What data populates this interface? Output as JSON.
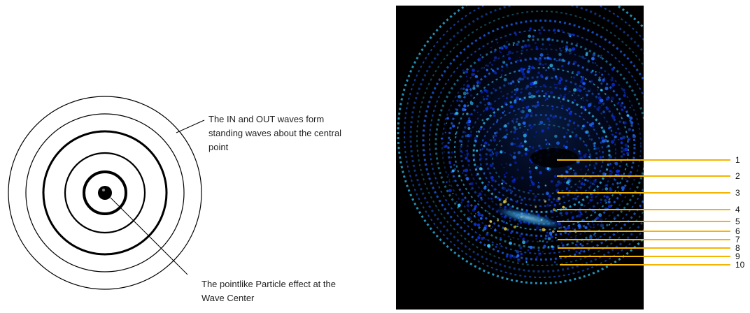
{
  "left_diagram": {
    "ring_color": "#000000",
    "annotation_top": {
      "lines": [
        "The IN and OUT waves form",
        "standing waves about the central",
        "point"
      ]
    },
    "annotation_bottom": {
      "lines": [
        "The pointlike Particle effect at the",
        "Wave Center"
      ]
    }
  },
  "right_image": {
    "background": "#000000",
    "glow_colors": [
      "#0a2bd6",
      "#1f6bff",
      "#35c8ff",
      "#f2d23a"
    ],
    "marker_color": "#f5b400",
    "markers": [
      "1",
      "2",
      "3",
      "4",
      "5",
      "6",
      "7",
      "8",
      "9",
      "10"
    ]
  }
}
